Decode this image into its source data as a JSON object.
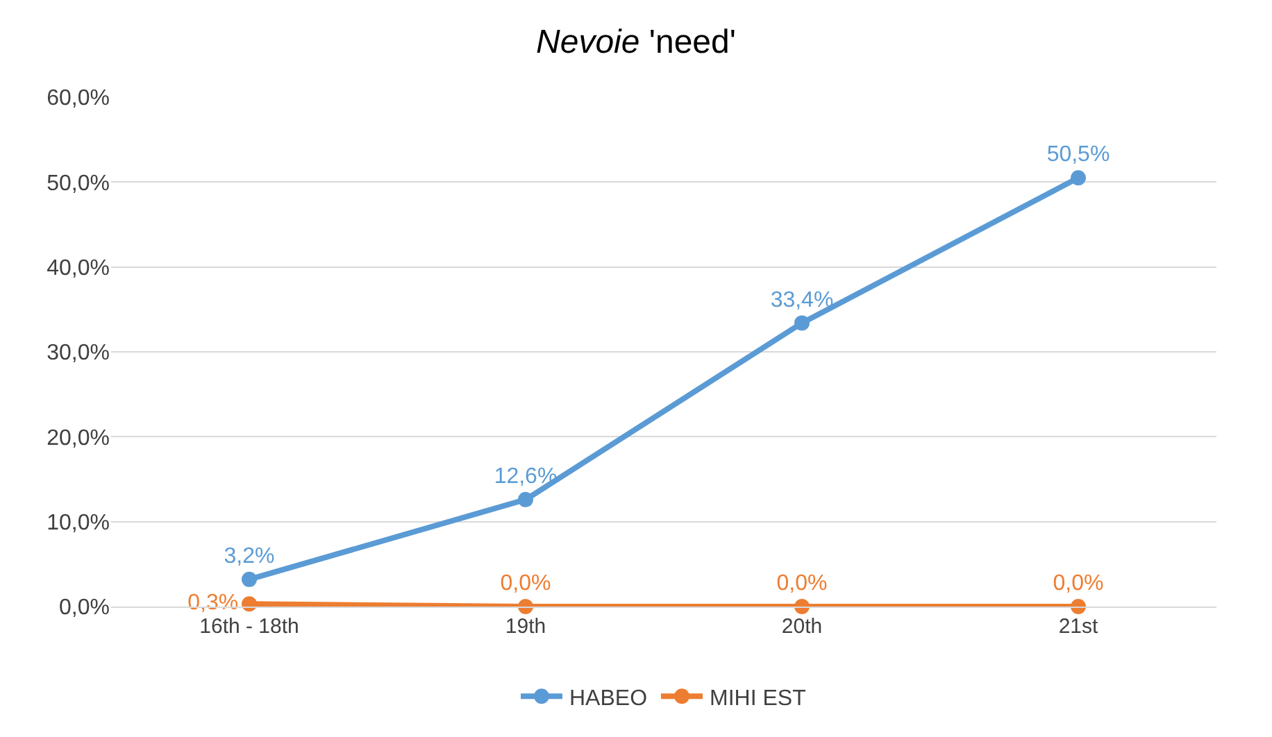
{
  "chart_data": {
    "type": "line",
    "title": "Nevoie 'need'",
    "categories": [
      "16th - 18th",
      "19th",
      "20th",
      "21st"
    ],
    "series": [
      {
        "name": "HABEO",
        "color": "#5b9bd5",
        "values": [
          3.2,
          12.6,
          33.4,
          50.5
        ],
        "value_labels": [
          "3,2%",
          "12,6%",
          "33,4%",
          "50,5%"
        ]
      },
      {
        "name": "MIHI EST",
        "color": "#ed7d31",
        "values": [
          0.3,
          0.0,
          0.0,
          0.0
        ],
        "value_labels": [
          "0,3%",
          "0,0%",
          "0,0%",
          "0,0%"
        ]
      }
    ],
    "ylim": [
      0,
      60
    ],
    "yticks": [
      {
        "value": 0,
        "label": "0,0%"
      },
      {
        "value": 10,
        "label": "10,0%"
      },
      {
        "value": 20,
        "label": "20,0%"
      },
      {
        "value": 30,
        "label": "30,0%"
      },
      {
        "value": 40,
        "label": "40,0%"
      },
      {
        "value": 50,
        "label": "50,0%"
      },
      {
        "value": 60,
        "label": "60,0%"
      }
    ],
    "grid": "y",
    "legend": "bottom",
    "marker": "circle",
    "line_style": "solid"
  }
}
